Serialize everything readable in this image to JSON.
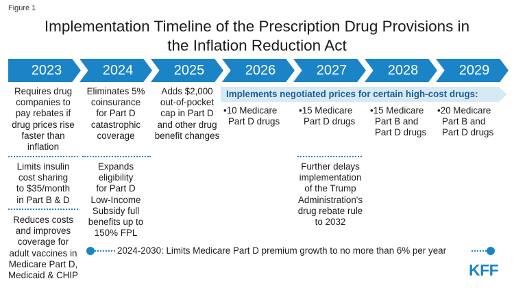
{
  "figure_label": "Figure 1",
  "title": {
    "line1": "Implementation Timeline of the Prescription Drug Provisions in",
    "line2": "the Inflation Reduction Act"
  },
  "years": [
    "2023",
    "2024",
    "2025",
    "2026",
    "2027",
    "2028",
    "2029"
  ],
  "items": {
    "y2023_a": [
      "Requires drug",
      "companies to",
      "pay rebates if",
      "drug prices rise",
      "faster than",
      "inflation"
    ],
    "y2023_b": [
      "Limits insulin",
      "cost sharing",
      "to $35/month",
      "in Part B & D"
    ],
    "y2023_c": [
      "Reduces costs",
      "and improves",
      "coverage for",
      "adult vaccines in",
      "Medicare Part D,",
      "Medicaid & CHIP"
    ],
    "y2024_a": [
      "Eliminates 5%",
      "coinsurance",
      "for Part D",
      "catastrophic",
      "coverage"
    ],
    "y2024_b": [
      "Expands",
      "eligibility",
      "for Part D",
      "Low-Income",
      "Subsidy full",
      "benefits up to",
      "150% FPL"
    ],
    "y2025_a": [
      "Adds $2,000",
      "out-of-pocket",
      "cap in Part D",
      "and other drug",
      "benefit changes"
    ],
    "negotiated_banner": "Implements negotiated prices for certain high-cost drugs:",
    "y2026_a": [
      "•10 Medicare",
      "Part D drugs"
    ],
    "y2027_a": [
      "•15 Medicare",
      "Part D drugs"
    ],
    "y2027_b": [
      "Further delays",
      "implementation",
      "of the Trump",
      "Administration's",
      "drug rebate rule",
      "to 2032"
    ],
    "y2028_a": [
      "•15 Medicare",
      "Part B and",
      "Part D drugs"
    ],
    "y2029_a": [
      "•20 Medicare",
      "Part B and",
      "Part D drugs"
    ]
  },
  "premium_timeline": "2024-2030:  Limits Medicare Part D premium growth to no more than 6% per year",
  "logo_text": "KFF",
  "colors": {
    "accent": "#1a84c7",
    "banner_bg": "#d7e9f5",
    "banner_text": "#1a5e96"
  }
}
